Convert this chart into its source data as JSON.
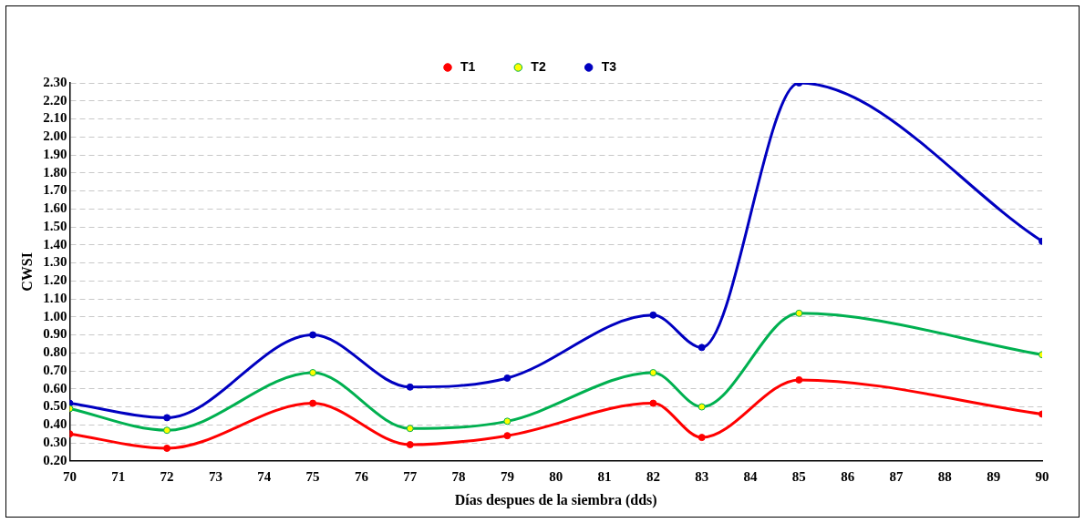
{
  "chart_data": {
    "type": "line",
    "xlabel": "Días despues de la siembra (dds)",
    "ylabel": "CWSI",
    "x": [
      70,
      72,
      75,
      77,
      79,
      82,
      83,
      85,
      90
    ],
    "series": [
      {
        "name": "T1",
        "color": "#ff0000",
        "values": [
          0.35,
          0.27,
          0.52,
          0.29,
          0.34,
          0.52,
          0.33,
          0.65,
          0.46
        ]
      },
      {
        "name": "T2",
        "color": "#00b050",
        "values": [
          0.49,
          0.37,
          0.69,
          0.38,
          0.42,
          0.69,
          0.5,
          1.02,
          0.79
        ]
      },
      {
        "name": "T3",
        "color": "#0000c0",
        "values": [
          0.52,
          0.44,
          0.9,
          0.61,
          0.66,
          1.01,
          0.83,
          2.3,
          1.42
        ]
      }
    ],
    "xlim": [
      70,
      90
    ],
    "xticks": [
      70,
      71,
      72,
      73,
      74,
      75,
      76,
      77,
      78,
      79,
      80,
      81,
      82,
      83,
      84,
      85,
      86,
      87,
      88,
      89,
      90
    ],
    "ylim": [
      0.2,
      2.3
    ],
    "yticks": [
      {
        "value": 0.2,
        "label": "0.20"
      },
      {
        "value": 0.3,
        "label": "0.30"
      },
      {
        "value": 0.4,
        "label": "0.40"
      },
      {
        "value": 0.5,
        "label": "0.50"
      },
      {
        "value": 0.6,
        "label": "0.60"
      },
      {
        "value": 0.7,
        "label": "0.70"
      },
      {
        "value": 0.8,
        "label": "0.80"
      },
      {
        "value": 0.9,
        "label": "0.90"
      },
      {
        "value": 1.0,
        "label": "1.00"
      },
      {
        "value": 1.1,
        "label": "1.10"
      },
      {
        "value": 1.2,
        "label": "1.20"
      },
      {
        "value": 1.3,
        "label": "1.30"
      },
      {
        "value": 1.4,
        "label": "1.40"
      },
      {
        "value": 1.5,
        "label": "1.50"
      },
      {
        "value": 1.6,
        "label": "1.60"
      },
      {
        "value": 1.7,
        "label": "1.70"
      },
      {
        "value": 1.8,
        "label": "1.80"
      },
      {
        "value": 1.9,
        "label": "1.90"
      },
      {
        "value": 2.0,
        "label": "2.00"
      },
      {
        "value": 2.1,
        "label": "2.10"
      },
      {
        "value": 2.2,
        "label": "2.20"
      },
      {
        "value": 2.3,
        "label": "2.30"
      }
    ],
    "grid": "y",
    "legend": "top",
    "marker": "circle",
    "line_style": "solid"
  }
}
